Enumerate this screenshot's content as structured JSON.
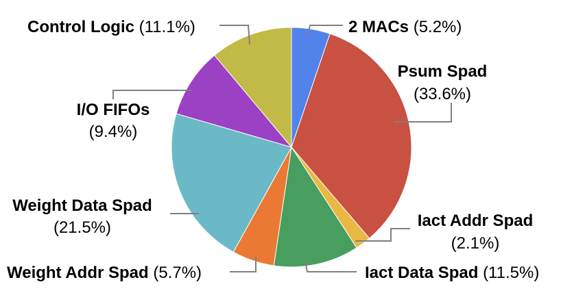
{
  "chart_data": {
    "type": "pie",
    "title": "",
    "series": [
      {
        "name": "2 MACs",
        "percent_label": "(5.2%)",
        "value": 5.2,
        "color": "#5283EA"
      },
      {
        "name": "Psum Spad",
        "percent_label": "(33.6%)",
        "value": 33.6,
        "color": "#C85142"
      },
      {
        "name": "Iact Addr Spad",
        "percent_label": "(2.1%)",
        "value": 2.1,
        "color": "#E9B843"
      },
      {
        "name": "Iact Data Spad",
        "percent_label": "(11.5%)",
        "value": 11.5,
        "color": "#489E5E"
      },
      {
        "name": "Weight Addr Spad",
        "percent_label": "(5.7%)",
        "value": 5.7,
        "color": "#EA7A33"
      },
      {
        "name": "Weight Data Spad",
        "percent_label": "(21.5%)",
        "value": 21.5,
        "color": "#6BB9C7"
      },
      {
        "name": "I/O FIFOs",
        "percent_label": "(9.4%)",
        "value": 9.4,
        "color": "#9C40C4"
      },
      {
        "name": "Control Logic",
        "percent_label": "(11.1%)",
        "value": 11.1,
        "color": "#C2BA47"
      }
    ],
    "start": "12 o'clock",
    "direction": "clockwise",
    "legend": "none",
    "labels": "outside with leader lines"
  }
}
